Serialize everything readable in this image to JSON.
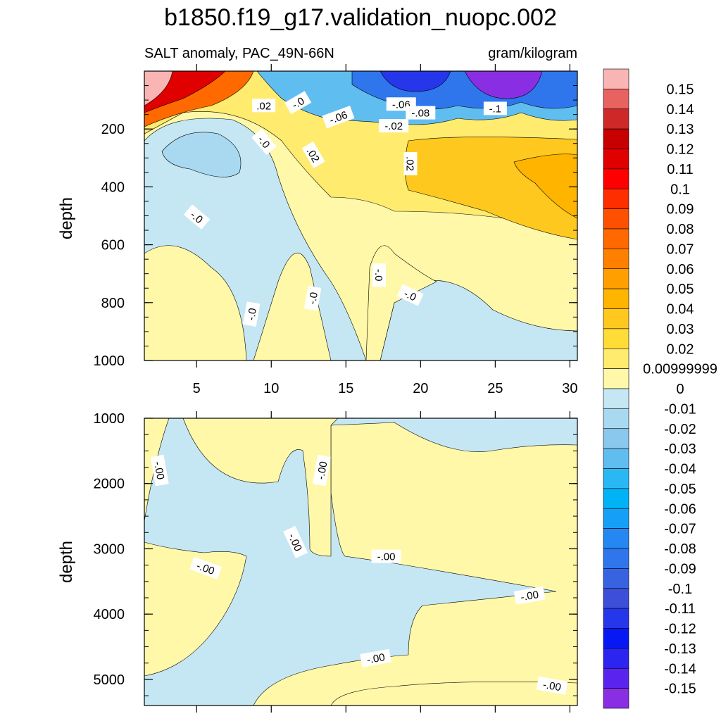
{
  "chart_data": {
    "type": "contour",
    "title": "b1850.f19_g17.validation_nuopc.002",
    "subtitle_left": "SALT anomaly, PAC_49N-66N",
    "subtitle_right": "gram/kilogram",
    "x_axis": {
      "range": [
        1.5,
        30.5
      ],
      "ticks": [
        5,
        10,
        15,
        20,
        25,
        30
      ],
      "tick_labels": [
        "5",
        "10",
        "15",
        "20",
        "25",
        "30"
      ]
    },
    "panels": [
      {
        "name": "upper",
        "ylabel": "depth",
        "ylim": [
          0,
          1000
        ],
        "yticks": [
          200,
          400,
          600,
          800,
          1000
        ],
        "ytick_labels": [
          "200",
          "400",
          "600",
          "800",
          "1000"
        ],
        "contour_labels": [
          {
            "text": ".02",
            "x": 9.5,
            "y": 120
          },
          {
            "text": "-.0",
            "x": 11.8,
            "y": 110,
            "rot": -30
          },
          {
            "text": "-.06",
            "x": 14.5,
            "y": 160,
            "rot": -20
          },
          {
            "text": "-.06",
            "x": 18.7,
            "y": 115
          },
          {
            "text": "-.08",
            "x": 20.0,
            "y": 145
          },
          {
            "text": "-.1",
            "x": 25.0,
            "y": 130
          },
          {
            "text": "-.02",
            "x": 18.2,
            "y": 190
          },
          {
            "text": "-.0",
            "x": 9.5,
            "y": 245,
            "rot": 50
          },
          {
            "text": ".02",
            "x": 12.8,
            "y": 290,
            "rot": 60
          },
          {
            "text": ".02",
            "x": 19.3,
            "y": 320,
            "rot": 90
          },
          {
            "text": "-.0",
            "x": 5.0,
            "y": 505,
            "rot": 40
          },
          {
            "text": "-.0",
            "x": 17.2,
            "y": 705,
            "rot": 90
          },
          {
            "text": "-.0",
            "x": 19.3,
            "y": 775,
            "rot": 25
          },
          {
            "text": "-.0",
            "x": 8.7,
            "y": 840,
            "rot": -80
          },
          {
            "text": "-.0",
            "x": 12.8,
            "y": 785,
            "rot": -80
          }
        ]
      },
      {
        "name": "lower",
        "ylabel": "depth",
        "ylim": [
          1000,
          5400
        ],
        "yticks": [
          1000,
          2000,
          3000,
          4000,
          5000
        ],
        "ytick_labels": [
          "1000",
          "2000",
          "3000",
          "4000",
          "5000"
        ],
        "contour_labels": [
          {
            "text": "-.00",
            "x": 2.5,
            "y": 1800,
            "rot": 80
          },
          {
            "text": "-.00",
            "x": 13.4,
            "y": 1800,
            "rot": -80
          },
          {
            "text": "-.00",
            "x": 11.6,
            "y": 2900,
            "rot": 65
          },
          {
            "text": "-.00",
            "x": 5.6,
            "y": 3300,
            "rot": 20
          },
          {
            "text": "-.00",
            "x": 17.7,
            "y": 3120
          },
          {
            "text": "-.00",
            "x": 27.3,
            "y": 3720,
            "rot": -10
          },
          {
            "text": "-.00",
            "x": 17.0,
            "y": 4680,
            "rot": -10
          },
          {
            "text": "-.00",
            "x": 28.8,
            "y": 5100,
            "rot": 10
          }
        ]
      }
    ],
    "colorbar": {
      "labels": [
        "0.15",
        "0.14",
        "0.13",
        "0.12",
        "0.11",
        "0.1",
        "0.09",
        "0.08",
        "0.07",
        "0.06",
        "0.05",
        "0.04",
        "0.03",
        "0.02",
        "0.00999999",
        "0",
        "-0.01",
        "-0.02",
        "-0.03",
        "-0.04",
        "-0.05",
        "-0.06",
        "-0.07",
        "-0.08",
        "-0.09",
        "-0.1",
        "-0.11",
        "-0.12",
        "-0.13",
        "-0.14",
        "-0.15"
      ],
      "colors": [
        "#f9b4b4",
        "#e86262",
        "#cf2828",
        "#c80000",
        "#e00000",
        "#ff0000",
        "#ff2e00",
        "#ff5000",
        "#ff6900",
        "#ff8000",
        "#ffa000",
        "#ffb400",
        "#ffc81e",
        "#ffdc36",
        "#ffeb6e",
        "#fff8a8",
        "#c5e6f3",
        "#a9d9f0",
        "#8ac8ee",
        "#60bdf0",
        "#2ab8f5",
        "#00b3f6",
        "#15a0f5",
        "#2487f2",
        "#2f76ec",
        "#3763e0",
        "#3d4fd8",
        "#2636ea",
        "#0818f5",
        "#2c24f0",
        "#5a24ef",
        "#8a2ee4"
      ]
    }
  }
}
